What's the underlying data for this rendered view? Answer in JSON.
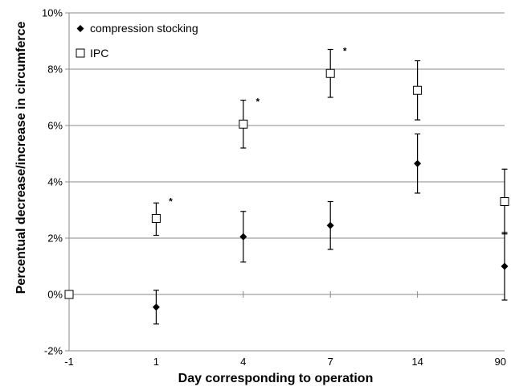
{
  "chart_data": {
    "type": "scatter",
    "title": "",
    "xlabel": "Day corresponding to operation",
    "ylabel": "Percentual decrease/increase in circumferce",
    "categories": [
      "-1",
      "1",
      "4",
      "7",
      "14",
      "90"
    ],
    "y_ticks": [
      "-2%",
      "0%",
      "2%",
      "4%",
      "6%",
      "8%",
      "10%"
    ],
    "ylim": [
      -2,
      10
    ],
    "y_unit": "%",
    "grid": "horizontal",
    "legend_position": "top-left",
    "series": [
      {
        "name": "compression stocking",
        "marker": "filled-diamond",
        "color": "#000000",
        "values": [
          0.0,
          -0.45,
          2.05,
          2.45,
          4.65,
          1.0
        ],
        "error_low": [
          0.0,
          -1.05,
          1.15,
          1.6,
          3.6,
          -0.2
        ],
        "error_high": [
          0.0,
          0.15,
          2.95,
          3.3,
          5.7,
          2.2
        ]
      },
      {
        "name": "IPC",
        "marker": "open-square",
        "color": "#000000",
        "values": [
          0.0,
          2.7,
          6.05,
          7.85,
          7.25,
          3.3
        ],
        "error_low": [
          0.0,
          2.1,
          5.2,
          7.0,
          6.2,
          2.15
        ],
        "error_high": [
          0.0,
          3.25,
          6.9,
          8.7,
          8.3,
          4.45
        ]
      }
    ],
    "annotations": [
      {
        "text": "*",
        "category": "1",
        "y": 3.3
      },
      {
        "text": "*",
        "category": "4",
        "y": 6.85
      },
      {
        "text": "*",
        "category": "7",
        "y": 8.65
      }
    ]
  }
}
